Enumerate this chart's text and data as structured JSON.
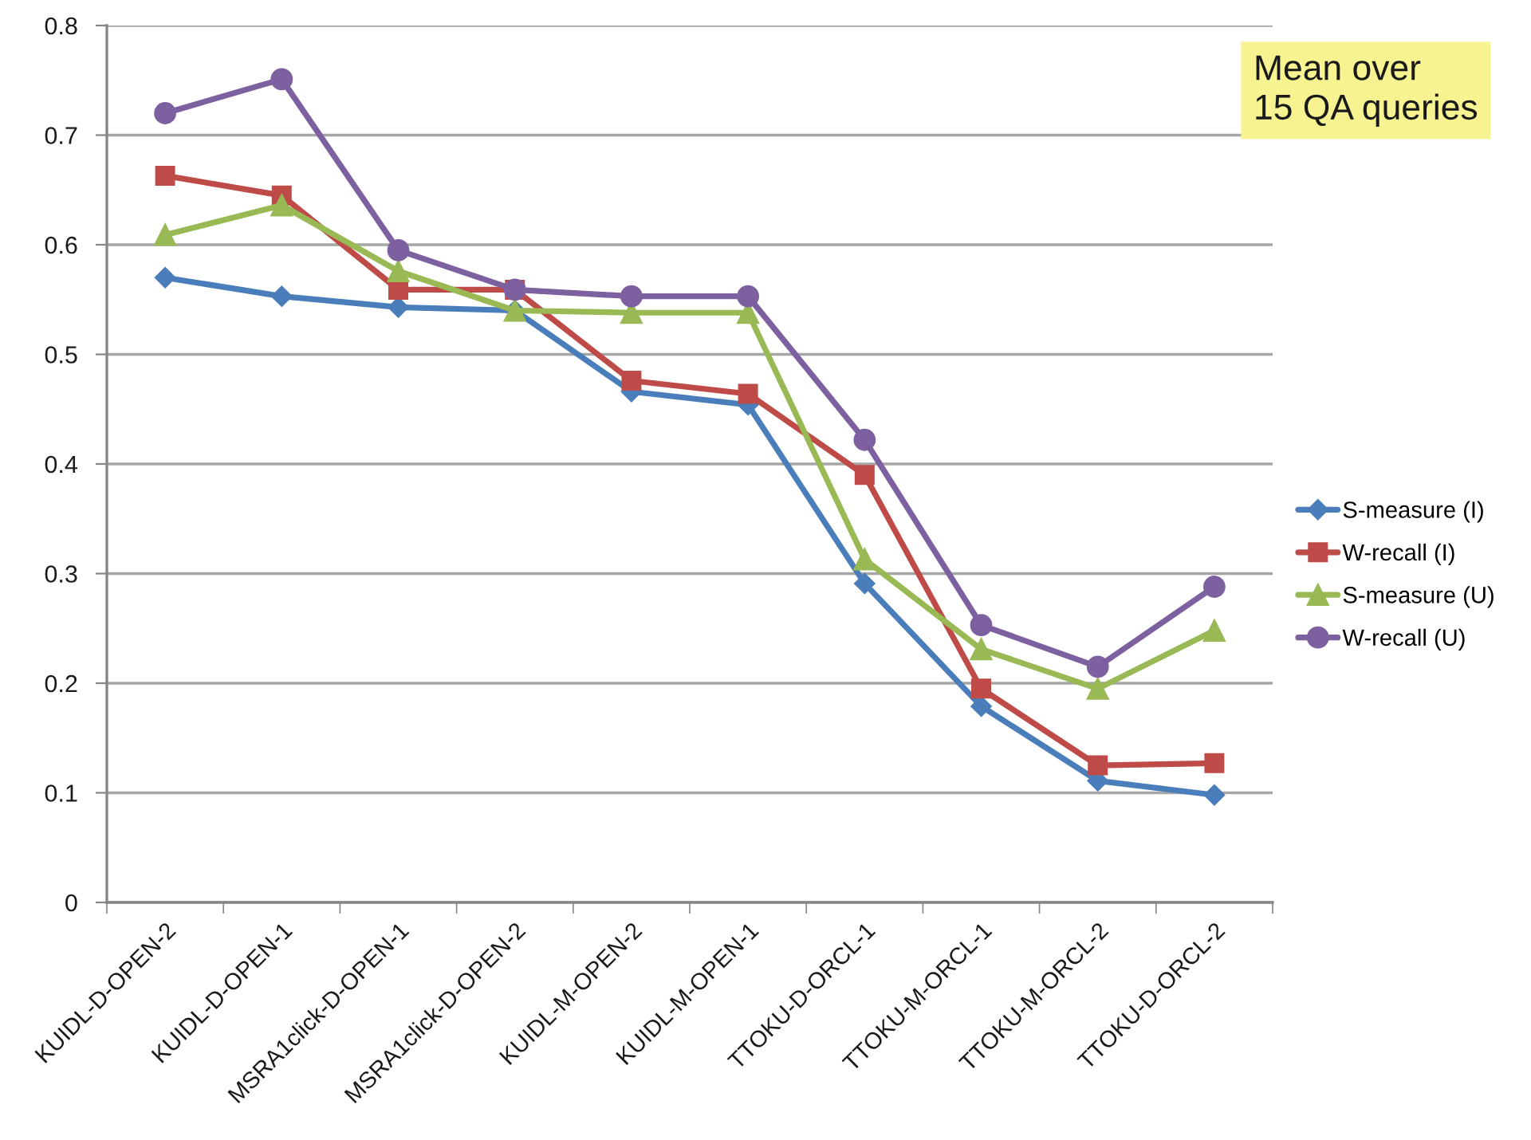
{
  "chart_data": {
    "type": "line",
    "categories": [
      "KUIDL-D-OPEN-2",
      "KUIDL-D-OPEN-1",
      "MSRA1click-D-OPEN-1",
      "MSRA1click-D-OPEN-2",
      "KUIDL-M-OPEN-2",
      "KUIDL-M-OPEN-1",
      "TTOKU-D-ORCL-1",
      "TTOKU-M-ORCL-1",
      "TTOKU-M-ORCL-2",
      "TTOKU-D-ORCL-2"
    ],
    "series": [
      {
        "name": "S-measure (I)",
        "color": "#4a7ebb",
        "marker": "diamond",
        "values": [
          0.57,
          0.553,
          0.543,
          0.54,
          0.466,
          0.454,
          0.291,
          0.179,
          0.111,
          0.098
        ]
      },
      {
        "name": "W-recall (I)",
        "color": "#be4b48",
        "marker": "square",
        "values": [
          0.663,
          0.645,
          0.559,
          0.559,
          0.476,
          0.464,
          0.39,
          0.195,
          0.125,
          0.127
        ]
      },
      {
        "name": "S-measure (U)",
        "color": "#98b954",
        "marker": "triangle",
        "values": [
          0.609,
          0.636,
          0.576,
          0.54,
          0.538,
          0.538,
          0.313,
          0.231,
          0.195,
          0.248
        ]
      },
      {
        "name": "W-recall (U)",
        "color": "#7d60a0",
        "marker": "circle",
        "values": [
          0.72,
          0.751,
          0.595,
          0.559,
          0.553,
          0.553,
          0.422,
          0.253,
          0.215,
          0.288
        ]
      }
    ],
    "ylim": [
      0,
      0.8
    ],
    "yticks": [
      0,
      0.1,
      0.2,
      0.3,
      0.4,
      0.5,
      0.6,
      0.7,
      0.8
    ],
    "grid": "y",
    "legend": "right",
    "line_style": "solid",
    "annotations": [
      "Mean over\n15 QA queries"
    ]
  }
}
